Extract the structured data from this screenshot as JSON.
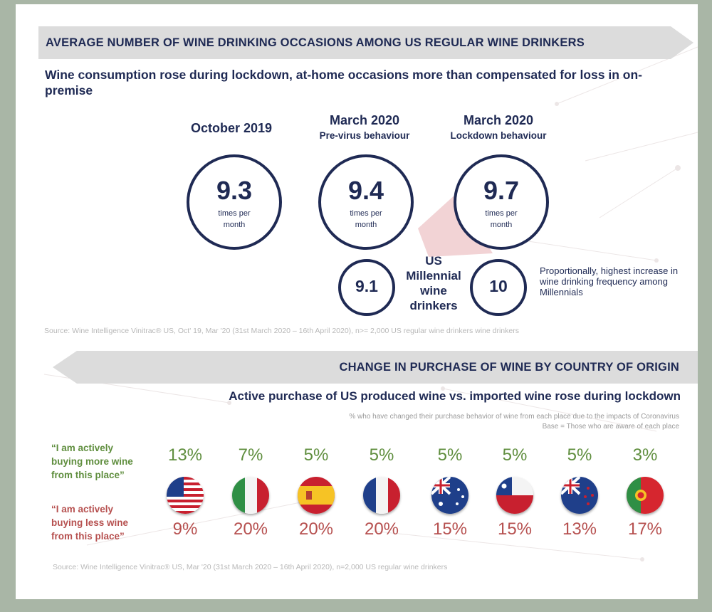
{
  "section1": {
    "banner_title": "AVERAGE NUMBER OF WINE DRINKING OCCASIONS AMONG US REGULAR WINE DRINKERS",
    "subtitle": "Wine consumption rose during lockdown, at-home occasions more than compensated for loss in on-premise",
    "unit_label": "times per month",
    "periods": [
      {
        "title": "October 2019",
        "subtitle": "",
        "value": "9.3"
      },
      {
        "title": "March 2020",
        "subtitle": "Pre-virus behaviour",
        "value": "9.4"
      },
      {
        "title": "March 2020",
        "subtitle": "Lockdown behaviour",
        "value": "9.7"
      }
    ],
    "millennial": {
      "label": "US Millennial wine drinkers",
      "pre_value": "9.1",
      "lockdown_value": "10",
      "note": "Proportionally, highest increase in wine drinking frequency among Millennials"
    },
    "source": "Source: Wine Intelligence Vinitrac® US, Oct' 19, Mar '20 (31st March 2020 – 16th April 2020), n>= 2,000 US regular wine drinkers wine drinkers"
  },
  "section2": {
    "banner_title": "CHANGE IN PURCHASE OF WINE BY COUNTRY OF ORIGIN",
    "subtitle": "Active purchase of US produced wine vs. imported wine rose during lockdown",
    "note_line1": "% who have changed their purchase behavior of wine from each place due to the impacts of Coronavirus",
    "note_line2": "Base = Those who are aware of each place",
    "more_label": "“I am actively buying more wine from this place”",
    "less_label": "“I am actively buying less wine from this place”",
    "source": "Source: Wine Intelligence Vinitrac® US, Mar '20 (31st March 2020 – 16th April 2020), n=2,000 US regular wine drinkers"
  },
  "chart_data": [
    {
      "type": "bar",
      "title": "Average number of wine drinking occasions among US regular wine drinkers",
      "ylabel": "times per month",
      "categories": [
        "October 2019",
        "March 2020 Pre-virus behaviour",
        "March 2020 Lockdown behaviour"
      ],
      "series": [
        {
          "name": "US regular wine drinkers",
          "values": [
            9.3,
            9.4,
            9.7
          ]
        },
        {
          "name": "US Millennial wine drinkers",
          "values": [
            null,
            9.1,
            10
          ]
        }
      ]
    },
    {
      "type": "table",
      "title": "Change in purchase of wine by country of origin",
      "categories": [
        "USA",
        "Italy",
        "Spain",
        "France",
        "Australia",
        "Chile",
        "New Zealand",
        "Portugal"
      ],
      "series": [
        {
          "name": "Buying more",
          "values": [
            13,
            7,
            5,
            5,
            5,
            5,
            5,
            3
          ],
          "color": "#5f8e3e"
        },
        {
          "name": "Buying less",
          "values": [
            9,
            20,
            20,
            20,
            15,
            15,
            13,
            17
          ],
          "color": "#b6504f"
        }
      ]
    }
  ]
}
